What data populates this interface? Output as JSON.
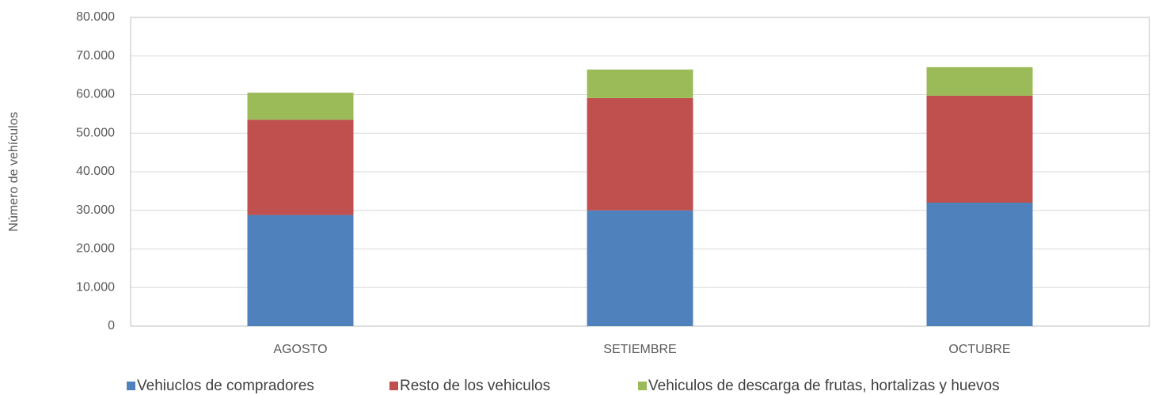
{
  "chart_data": {
    "type": "bar",
    "stacked": true,
    "y_label": "Número de vehículos",
    "categories": [
      "AGOSTO",
      "SETIEMBRE",
      "OCTUBRE"
    ],
    "series": [
      {
        "name": "Vehiuclos de compradores",
        "color": "#4f81bd",
        "values": [
          28800,
          30000,
          32000
        ]
      },
      {
        "name": "Resto de los vehiculos",
        "color": "#c0504d",
        "values": [
          24700,
          29100,
          27700
        ]
      },
      {
        "name": "Vehiculos de descarga de frutas, hortalizas y huevos",
        "color": "#9bbb59",
        "values": [
          7000,
          7400,
          7400
        ]
      }
    ],
    "ylim": [
      0,
      80000
    ],
    "yticks": [
      0,
      {
        "value": 10000,
        "label": "10.000"
      },
      {
        "value": 20000,
        "label": "20.000"
      },
      {
        "value": 30000,
        "label": "30.000"
      },
      {
        "value": 40000,
        "label": "40.000"
      },
      {
        "value": 50000,
        "label": "50.000"
      },
      {
        "value": 60000,
        "label": "60.000"
      },
      {
        "value": 70000,
        "label": "70.000"
      },
      {
        "value": 80000,
        "label": "80.000"
      }
    ],
    "grid": true,
    "legend": "bottom"
  }
}
